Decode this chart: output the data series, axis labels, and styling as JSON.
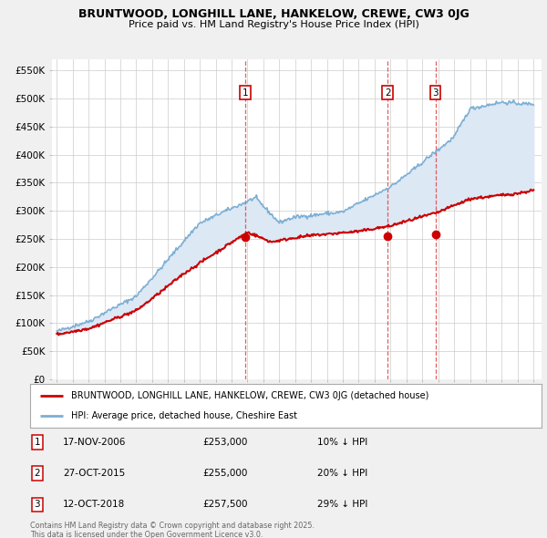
{
  "title": "BRUNTWOOD, LONGHILL LANE, HANKELOW, CREWE, CW3 0JG",
  "subtitle": "Price paid vs. HM Land Registry's House Price Index (HPI)",
  "background_color": "#f0f0f0",
  "plot_bg_color": "#ffffff",
  "plot_fill_color": "#dde8f5",
  "yticks": [
    0,
    50000,
    100000,
    150000,
    200000,
    250000,
    300000,
    350000,
    400000,
    450000,
    500000,
    550000
  ],
  "ytick_labels": [
    "£0",
    "£50K",
    "£100K",
    "£150K",
    "£200K",
    "£250K",
    "£300K",
    "£350K",
    "£400K",
    "£450K",
    "£500K",
    "£550K"
  ],
  "xmin": 1994.7,
  "xmax": 2025.5,
  "ymin": 0,
  "ymax": 570000,
  "sale_dates": [
    2006.88,
    2015.82,
    2018.82
  ],
  "sale_prices": [
    253000,
    255000,
    257500
  ],
  "sale_labels": [
    "1",
    "2",
    "3"
  ],
  "sale_line_color": "#cc0000",
  "hpi_line_color": "#7cafd4",
  "transactions": [
    {
      "label": "1",
      "date": "17-NOV-2006",
      "price": "£253,000",
      "hpi": "10% ↓ HPI"
    },
    {
      "label": "2",
      "date": "27-OCT-2015",
      "price": "£255,000",
      "hpi": "20% ↓ HPI"
    },
    {
      "label": "3",
      "date": "12-OCT-2018",
      "price": "£257,500",
      "hpi": "29% ↓ HPI"
    }
  ],
  "legend_line1": "BRUNTWOOD, LONGHILL LANE, HANKELOW, CREWE, CW3 0JG (detached house)",
  "legend_line2": "HPI: Average price, detached house, Cheshire East",
  "footer1": "Contains HM Land Registry data © Crown copyright and database right 2025.",
  "footer2": "This data is licensed under the Open Government Licence v3.0."
}
